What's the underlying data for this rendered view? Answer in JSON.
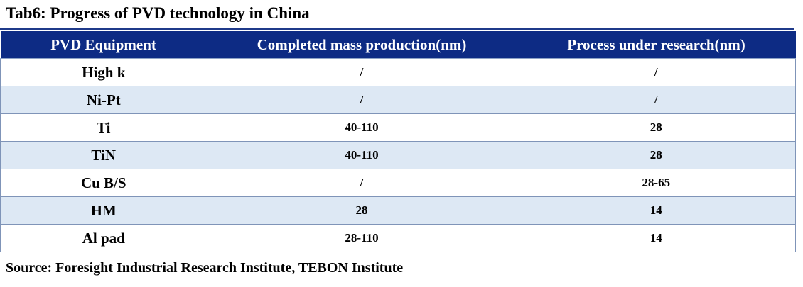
{
  "title": "Tab6: Progress of PVD technology in China",
  "table": {
    "headers": [
      "PVD Equipment",
      "Completed mass production(nm)",
      "Process under research(nm)"
    ],
    "rows": [
      [
        "High k",
        "/",
        "/"
      ],
      [
        "Ni-Pt",
        "/",
        "/"
      ],
      [
        "Ti",
        "40-110",
        "28"
      ],
      [
        "TiN",
        "40-110",
        "28"
      ],
      [
        "Cu B/S",
        "/",
        "28-65"
      ],
      [
        "HM",
        "28",
        "14"
      ],
      [
        "Al pad",
        "28-110",
        "14"
      ]
    ]
  },
  "source": "Source: Foresight Industrial Research Institute, TEBON Institute",
  "colors": {
    "header_bg": "#0d2b84",
    "header_text": "#ffffff",
    "stripe_bg": "#dde8f4",
    "border": "#7f94b8"
  }
}
